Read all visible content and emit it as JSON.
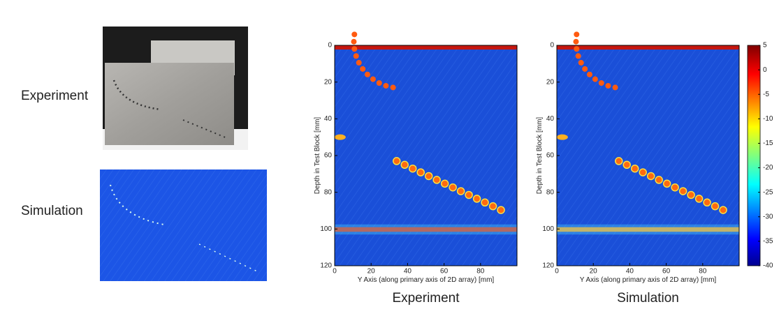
{
  "labels": {
    "photo": "Experiment",
    "simulation": "Simulation"
  },
  "panels": [
    {
      "caption": "Experiment",
      "xlabel": "Y Axis (along primary axis of 2D array) [mm]",
      "ylabel": "Depth in Test Block [mm]",
      "xlim": [
        0,
        100
      ],
      "ylim": [
        0,
        120
      ],
      "xticks": [
        0,
        20,
        40,
        60,
        80
      ],
      "yticks": [
        0,
        20,
        40,
        60,
        80,
        100,
        120
      ]
    },
    {
      "caption": "Simulation",
      "xlabel": "Y Axis (along primary axis of 2D array) [mm]",
      "ylabel": "Depth in Test Block [mm]",
      "xlim": [
        0,
        100
      ],
      "ylim": [
        0,
        120
      ],
      "xticks": [
        0,
        20,
        40,
        60,
        80
      ],
      "yticks": [
        0,
        20,
        40,
        60,
        80,
        100,
        120
      ]
    }
  ],
  "colorbar": {
    "lim": [
      -40,
      5
    ],
    "ticks": [
      5,
      0,
      -5,
      -10,
      -15,
      -20,
      -25,
      -30,
      -35,
      -40
    ]
  }
}
